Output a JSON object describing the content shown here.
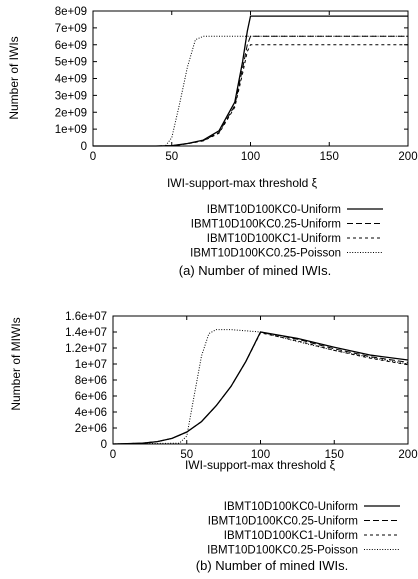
{
  "chart_data": [
    {
      "type": "line",
      "xlabel": "IWI-support-max threshold ξ",
      "ylabel": "Number of IWIs",
      "caption": "(a) Number of mined IWIs.",
      "xlim": [
        0,
        200
      ],
      "ylim": [
        0,
        8000000000
      ],
      "xticks": [
        "0",
        "50",
        "100",
        "150",
        "200"
      ],
      "yticks": [
        "0",
        "1e+09",
        "2e+09",
        "3e+09",
        "4e+09",
        "5e+09",
        "6e+09",
        "7e+09",
        "8e+09"
      ],
      "grid": false,
      "legend_position": "below",
      "series": [
        {
          "name": "IBMT10D100KC0-Uniform",
          "style": "solid",
          "x": [
            0,
            40,
            50,
            60,
            70,
            80,
            90,
            95,
            98,
            100,
            200
          ],
          "y": [
            0,
            0,
            20000000,
            150000000,
            350000000,
            900000000,
            2600000000,
            5000000000,
            6800000000,
            7700000000,
            7700000000
          ]
        },
        {
          "name": "IBMT10D100KC0.25-Uniform",
          "style": "dashed",
          "x": [
            0,
            40,
            50,
            60,
            70,
            80,
            90,
            95,
            98,
            100,
            200
          ],
          "y": [
            0,
            0,
            20000000,
            150000000,
            320000000,
            800000000,
            2400000000,
            4600000000,
            6000000000,
            6500000000,
            6500000000
          ]
        },
        {
          "name": "IBMT10D100KC1-Uniform",
          "style": "short-dashed",
          "x": [
            0,
            40,
            50,
            60,
            70,
            80,
            90,
            95,
            98,
            100,
            200
          ],
          "y": [
            0,
            0,
            20000000,
            130000000,
            300000000,
            750000000,
            2300000000,
            4300000000,
            5600000000,
            6000000000,
            6000000000
          ]
        },
        {
          "name": "IBMT10D100KC0.25-Poisson",
          "style": "dotted",
          "x": [
            0,
            40,
            46,
            50,
            55,
            60,
            65,
            70,
            75,
            200
          ],
          "y": [
            0,
            0,
            0,
            500000000,
            2500000000,
            4700000000,
            6300000000,
            6500000000,
            6500000000,
            6500000000
          ]
        }
      ]
    },
    {
      "type": "line",
      "xlabel": "IWI-support-max threshold ξ",
      "ylabel": "Number of MIWIs",
      "caption": "(b) Number of mined IWIs.",
      "xlim": [
        0,
        200
      ],
      "ylim": [
        0,
        16000000
      ],
      "xticks": [
        "0",
        "50",
        "100",
        "150",
        "200"
      ],
      "yticks": [
        "0",
        "2e+06",
        "4e+06",
        "6e+06",
        "8e+06",
        "1e+07",
        "1.2e+07",
        "1.4e+07",
        "1.6e+07"
      ],
      "grid": false,
      "legend_position": "below",
      "series": [
        {
          "name": "IBMT10D100KC0-Uniform",
          "style": "solid",
          "x": [
            0,
            20,
            30,
            40,
            50,
            60,
            70,
            80,
            90,
            100,
            125,
            150,
            175,
            200
          ],
          "y": [
            0,
            100000,
            300000,
            700000,
            1500000,
            2800000,
            4800000,
            7200000,
            10300000,
            14000000,
            13200000,
            12100000,
            11100000,
            10500000
          ]
        },
        {
          "name": "IBMT10D100KC0.25-Uniform",
          "style": "dashed",
          "x": [
            0,
            20,
            30,
            40,
            50,
            60,
            70,
            80,
            90,
            100,
            125,
            150,
            175,
            200
          ],
          "y": [
            0,
            100000,
            300000,
            700000,
            1500000,
            2800000,
            4800000,
            7200000,
            10300000,
            14000000,
            13100000,
            11900000,
            10900000,
            10200000
          ]
        },
        {
          "name": "IBMT10D100KC1-Uniform",
          "style": "short-dashed",
          "x": [
            0,
            20,
            30,
            40,
            50,
            60,
            70,
            80,
            90,
            100,
            125,
            150,
            175,
            200
          ],
          "y": [
            0,
            100000,
            300000,
            700000,
            1500000,
            2800000,
            4800000,
            7200000,
            10300000,
            13900000,
            12900000,
            11700000,
            10700000,
            9900000
          ]
        },
        {
          "name": "IBMT10D100KC0.25-Poisson",
          "style": "dotted",
          "x": [
            0,
            45,
            50,
            55,
            60,
            65,
            70,
            80,
            100,
            125,
            150,
            175,
            200
          ],
          "y": [
            0,
            100000,
            1000000,
            6000000,
            11000000,
            13800000,
            14300000,
            14300000,
            14000000,
            12800000,
            11700000,
            10800000,
            10000000
          ]
        }
      ]
    }
  ]
}
